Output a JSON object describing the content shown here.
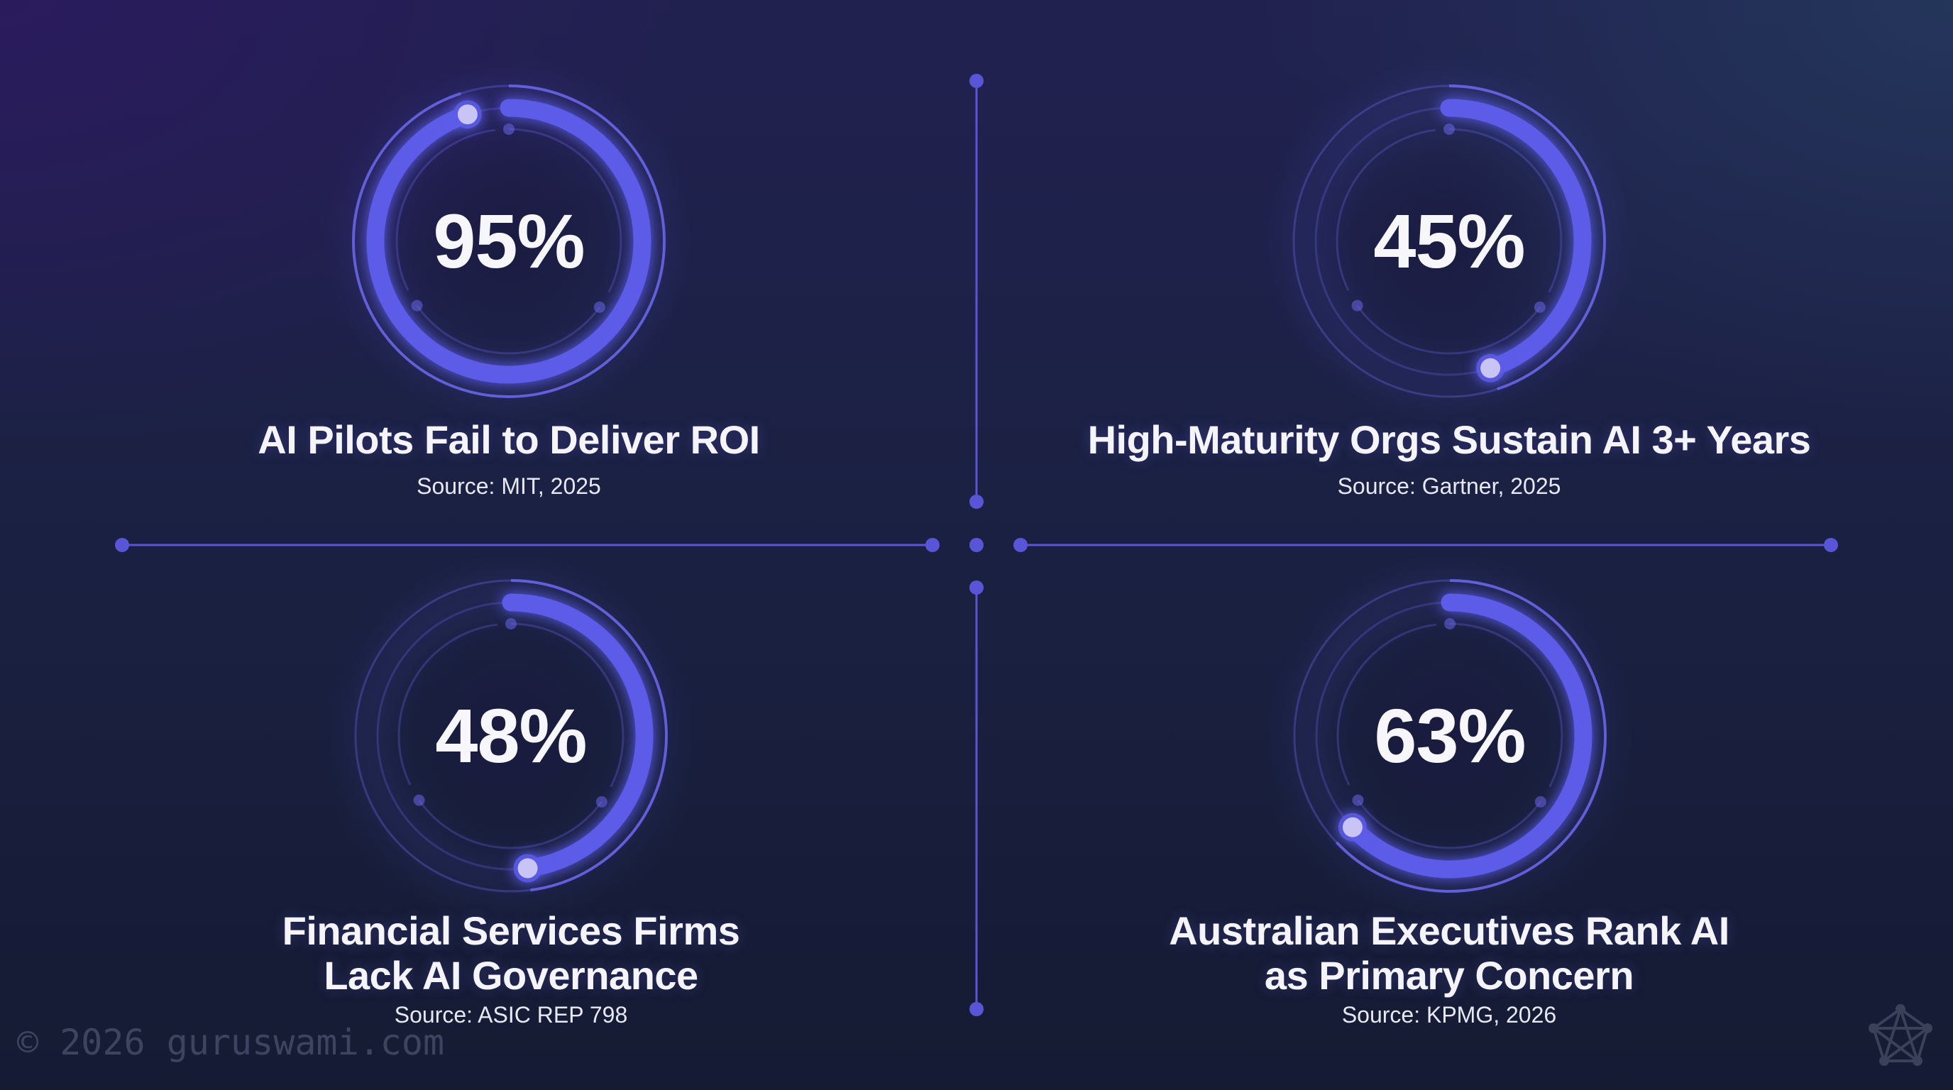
{
  "colors": {
    "background_top_left": "#241b52",
    "background_top_right": "#233555",
    "background_bottom": "#141a2e",
    "accent": "#5b5be8",
    "accent_ring": "#6a66e8",
    "endpoint_dot": "#c8c4f5",
    "divider": "#5a55d6",
    "text": "#f4f4fa",
    "watermark": "#3a4258"
  },
  "stats": [
    {
      "value": "95%",
      "percent": 95,
      "title_lines": [
        "AI Pilots Fail to Deliver ROI"
      ],
      "source": "Source: MIT, 2025"
    },
    {
      "value": "45%",
      "percent": 45,
      "title_lines": [
        "High-Maturity Orgs Sustain AI 3+ Years"
      ],
      "source": "Source: Gartner, 2025"
    },
    {
      "value": "48%",
      "percent": 48,
      "title_lines": [
        "Financial Services Firms",
        "Lack AI Governance"
      ],
      "source": "Source: ASIC REP 798"
    },
    {
      "value": "63%",
      "percent": 63,
      "title_lines": [
        "Australian Executives Rank AI",
        "as Primary Concern"
      ],
      "source": "Source: KPMG, 2026"
    }
  ],
  "watermark": "© 2026 guruswami.com",
  "icons": {
    "logo": "network-pentagon-icon"
  },
  "chart_data": {
    "type": "radial-progress",
    "title": "",
    "categories": [
      "AI Pilots Fail to Deliver ROI",
      "High-Maturity Orgs Sustain AI 3+ Years",
      "Financial Services Firms Lack AI Governance",
      "Australian Executives Rank AI as Primary Concern"
    ],
    "values": [
      95,
      45,
      48,
      63
    ],
    "unit": "%",
    "sources": [
      "MIT, 2025",
      "Gartner, 2025",
      "ASIC REP 798",
      "KPMG, 2026"
    ],
    "range": [
      0,
      100
    ],
    "layout": "2x2 grid"
  }
}
